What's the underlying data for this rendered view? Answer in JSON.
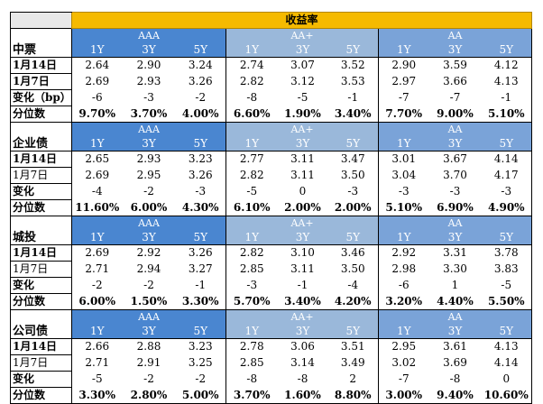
{
  "title": "收益率",
  "groups": [
    "AAA",
    "AA+",
    "AA"
  ],
  "tenors": [
    "1Y",
    "3Y",
    "5Y"
  ],
  "colors": {
    "title_bg": "#f5ba00",
    "aaa_bg": "#4a86d0",
    "aaplus_bg": "#9ab8da",
    "aa_bg": "#7aa3d8"
  },
  "sections": [
    {
      "name": "中票",
      "rows": [
        {
          "label": "1月14日",
          "values": [
            "2.64",
            "2.90",
            "3.24",
            "2.74",
            "3.07",
            "3.52",
            "2.90",
            "3.59",
            "4.12"
          ]
        },
        {
          "label": "1月7日",
          "values": [
            "2.69",
            "2.93",
            "3.26",
            "2.82",
            "3.12",
            "3.53",
            "2.97",
            "3.66",
            "4.13"
          ]
        },
        {
          "label": "变化（bp）",
          "values": [
            "-6",
            "-3",
            "-2",
            "-8",
            "-5",
            "-1",
            "-7",
            "-7",
            "-1"
          ]
        },
        {
          "label": "分位数",
          "values": [
            "9.70%",
            "3.70%",
            "4.00%",
            "6.60%",
            "1.90%",
            "3.40%",
            "7.70%",
            "9.00%",
            "5.10%"
          ]
        }
      ]
    },
    {
      "name": "企业债",
      "rows": [
        {
          "label": "1月14日",
          "values": [
            "2.65",
            "2.93",
            "3.23",
            "2.77",
            "3.11",
            "3.47",
            "3.01",
            "3.67",
            "4.14"
          ]
        },
        {
          "label": "1月7日",
          "values": [
            "2.69",
            "2.95",
            "3.26",
            "2.82",
            "3.11",
            "3.50",
            "3.04",
            "3.70",
            "4.17"
          ]
        },
        {
          "label": "变化",
          "values": [
            "-4",
            "-2",
            "-3",
            "-5",
            "0",
            "-3",
            "-3",
            "-3",
            "-3"
          ]
        },
        {
          "label": "分位数",
          "values": [
            "11.60%",
            "6.00%",
            "4.30%",
            "6.10%",
            "2.00%",
            "2.00%",
            "5.10%",
            "6.90%",
            "4.90%"
          ]
        }
      ]
    },
    {
      "name": "城投",
      "rows": [
        {
          "label": "1月14日",
          "values": [
            "2.69",
            "2.92",
            "3.26",
            "2.82",
            "3.10",
            "3.46",
            "2.92",
            "3.31",
            "3.78"
          ]
        },
        {
          "label": "1月7日",
          "values": [
            "2.71",
            "2.94",
            "3.27",
            "2.85",
            "3.11",
            "3.50",
            "2.98",
            "3.30",
            "3.83"
          ]
        },
        {
          "label": "变化",
          "values": [
            "-2",
            "-2",
            "-1",
            "-3",
            "-1",
            "-4",
            "-6",
            "1",
            "-5"
          ]
        },
        {
          "label": "分位数",
          "values": [
            "6.00%",
            "1.50%",
            "3.30%",
            "5.70%",
            "3.40%",
            "4.20%",
            "3.20%",
            "4.40%",
            "5.50%"
          ]
        }
      ]
    },
    {
      "name": "公司债",
      "rows": [
        {
          "label": "1月14日",
          "values": [
            "2.66",
            "2.88",
            "3.23",
            "2.78",
            "3.06",
            "3.51",
            "2.95",
            "3.61",
            "4.13"
          ]
        },
        {
          "label": "1月7日",
          "values": [
            "2.71",
            "2.91",
            "3.25",
            "2.85",
            "3.14",
            "3.49",
            "3.02",
            "3.69",
            "4.14"
          ]
        },
        {
          "label": "变化",
          "values": [
            "-5",
            "-2",
            "-2",
            "-8",
            "-8",
            "2",
            "-7",
            "-8",
            "0"
          ]
        },
        {
          "label": "分位数",
          "values": [
            "3.30%",
            "2.80%",
            "5.00%",
            "3.70%",
            "1.60%",
            "8.80%",
            "3.00%",
            "9.40%",
            "10.60%"
          ]
        }
      ]
    }
  ]
}
